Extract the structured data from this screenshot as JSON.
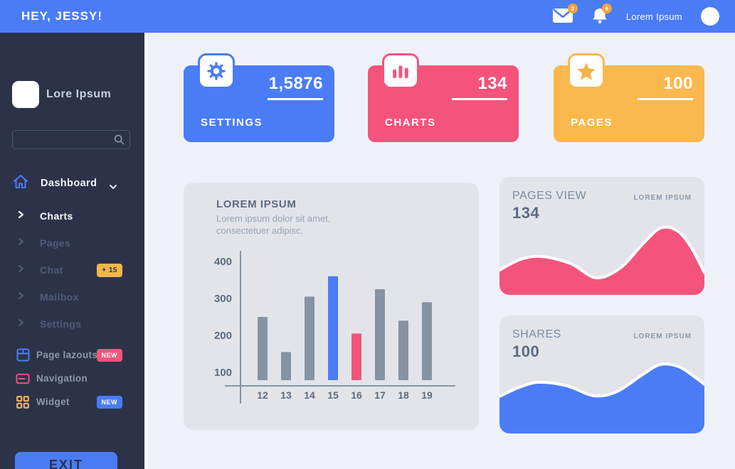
{
  "header": {
    "greeting": "HEY, JESSY!",
    "mail_badge": "3",
    "bell_badge": "6",
    "user_name": "Lorem Ipsum"
  },
  "sidebar": {
    "logo_text": "Lore Ipsum",
    "search_value": "",
    "dashboard_label": "Dashboard",
    "nav_items": [
      {
        "label": "Charts",
        "active": true
      },
      {
        "label": "Pages"
      },
      {
        "label": "Chat",
        "badge": "+ 15",
        "badge_color": "#f0b64a"
      },
      {
        "label": "Mailbox"
      },
      {
        "label": "Settings"
      }
    ],
    "tool_items": [
      {
        "label": "Page lazouts",
        "icon": "layout-icon",
        "badge": "NEW",
        "badge_color": "#f4547c"
      },
      {
        "label": "Navigation",
        "icon": "navigation-icon",
        "badge": ""
      },
      {
        "label": "Widget",
        "icon": "widget-icon",
        "badge": "NEW",
        "badge_color": "#4a7cf6"
      }
    ],
    "exit_label": "EXIT"
  },
  "stat_cards": [
    {
      "label": "SETTINGS",
      "value": "1,5876",
      "color": "#4a7cf6",
      "icon": "gear-icon"
    },
    {
      "label": "CHARTS",
      "value": "134",
      "color": "#f4547c",
      "icon": "bar-chart-icon"
    },
    {
      "label": "PAGES",
      "value": "100",
      "color": "#fbb84e",
      "icon": "star-icon"
    }
  ],
  "chart_data": [
    {
      "type": "bar",
      "title": "LOREM IPSUM",
      "subtitle": "Lorem ipsum dolor sit amet, consectetuer adipisc.",
      "categories": [
        "12",
        "13",
        "14",
        "15",
        "16",
        "17",
        "18",
        "19"
      ],
      "values": [
        250,
        155,
        305,
        360,
        205,
        325,
        240,
        290
      ],
      "yticks": [
        400,
        300,
        200,
        100
      ],
      "ylim": [
        100,
        400
      ],
      "xlabel": "",
      "ylabel": "",
      "grid": false,
      "bar_default_color": "#8593a5",
      "highlights": {
        "15": "#4a7cf6",
        "16": "#f4547c"
      },
      "axis_color": "#8593a5",
      "tick_color": "#5d6a82"
    },
    {
      "type": "area",
      "title": "PAGES VIEW",
      "value": "134",
      "tag": "LOREM IPSUM",
      "color": "#f4547c",
      "stroke": "#ffffff",
      "points": [
        [
          0,
          131
        ],
        [
          30,
          116
        ],
        [
          60,
          112
        ],
        [
          100,
          122
        ],
        [
          136,
          142
        ],
        [
          170,
          128
        ],
        [
          200,
          96
        ],
        [
          226,
          72
        ],
        [
          250,
          76
        ],
        [
          270,
          100
        ],
        [
          288,
          135
        ]
      ]
    },
    {
      "type": "area",
      "title": "SHARES",
      "value": "100",
      "tag": "LOREM IPSUM",
      "color": "#4a7cf6",
      "stroke": "#ffffff",
      "points": [
        [
          0,
          114
        ],
        [
          28,
          101
        ],
        [
          55,
          94
        ],
        [
          95,
          99
        ],
        [
          133,
          113
        ],
        [
          165,
          107
        ],
        [
          200,
          84
        ],
        [
          226,
          69
        ],
        [
          252,
          72
        ],
        [
          275,
          87
        ],
        [
          288,
          97
        ]
      ]
    }
  ],
  "colors": {
    "accent_blue": "#4a7cf6",
    "pink": "#f4547c",
    "orange": "#fbb84e",
    "badge_orange": "#f2a33c",
    "sidebar_bg": "#2c3349",
    "main_bg": "#eef1f8",
    "card_bg": "#e2e4e9",
    "bar_gray": "#8593a5",
    "text_slate": "#5d6a82",
    "text_muted": "#9aa3b6"
  }
}
